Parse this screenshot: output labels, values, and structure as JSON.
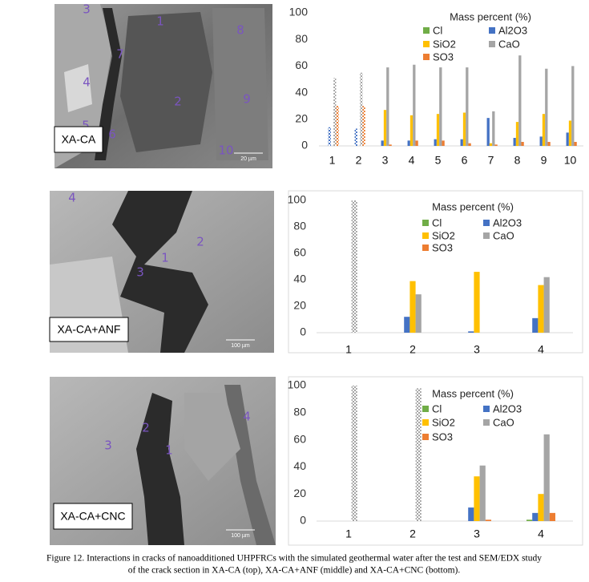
{
  "chart_data": [
    {
      "type": "bar",
      "legend_title": "Mass percent (%)",
      "categories": [
        "1",
        "2",
        "3",
        "4",
        "5",
        "6",
        "7",
        "8",
        "9",
        "10"
      ],
      "checkered": [
        true,
        true,
        false,
        false,
        false,
        false,
        false,
        false,
        false,
        false
      ],
      "series": [
        {
          "name": "Cl",
          "color": "#70ad47",
          "values": [
            0,
            0,
            0,
            0,
            0,
            0,
            0,
            0,
            0,
            0
          ]
        },
        {
          "name": "Al2O3",
          "color": "#4472c4",
          "values": [
            14,
            13,
            4,
            4,
            5,
            5,
            21,
            6,
            7,
            10
          ]
        },
        {
          "name": "SiO2",
          "color": "#ffc000",
          "values": [
            0,
            0,
            27,
            23,
            24,
            25,
            2,
            18,
            24,
            19
          ]
        },
        {
          "name": "CaO",
          "color": "#a5a5a5",
          "values": [
            51,
            55,
            59,
            61,
            59,
            59,
            26,
            68,
            58,
            60
          ]
        },
        {
          "name": "SO3",
          "color": "#ed7d31",
          "values": [
            30,
            30,
            1,
            4,
            4,
            2,
            1,
            3,
            3,
            3
          ]
        }
      ],
      "ylim": [
        0,
        100
      ],
      "yticks": [
        0,
        20,
        40,
        60,
        80,
        100
      ],
      "frame": false
    },
    {
      "type": "bar",
      "legend_title": "Mass percent (%)",
      "categories": [
        "1",
        "2",
        "3",
        "4"
      ],
      "checkered": [
        true,
        false,
        false,
        false
      ],
      "series": [
        {
          "name": "Cl",
          "color": "#70ad47",
          "values": [
            0,
            0,
            0,
            0
          ]
        },
        {
          "name": "Al2O3",
          "color": "#4472c4",
          "values": [
            0,
            12,
            1,
            11
          ]
        },
        {
          "name": "SiO2",
          "color": "#ffc000",
          "values": [
            0,
            39,
            46,
            36
          ]
        },
        {
          "name": "CaO",
          "color": "#a5a5a5",
          "values": [
            100,
            29,
            0,
            42
          ]
        },
        {
          "name": "SO3",
          "color": "#ed7d31",
          "values": [
            0,
            0,
            0,
            0
          ]
        }
      ],
      "ylim": [
        0,
        100
      ],
      "yticks": [
        0,
        20,
        40,
        60,
        80,
        100
      ],
      "frame": true
    },
    {
      "type": "bar",
      "legend_title": "Mass percent (%)",
      "categories": [
        "1",
        "2",
        "3",
        "4"
      ],
      "checkered": [
        true,
        true,
        false,
        false
      ],
      "series": [
        {
          "name": "Cl",
          "color": "#70ad47",
          "values": [
            0,
            0,
            0,
            1
          ]
        },
        {
          "name": "Al2O3",
          "color": "#4472c4",
          "values": [
            0,
            0,
            10,
            6
          ]
        },
        {
          "name": "SiO2",
          "color": "#ffc000",
          "values": [
            0,
            0,
            33,
            20
          ]
        },
        {
          "name": "CaO",
          "color": "#a5a5a5",
          "values": [
            100,
            98,
            41,
            64
          ]
        },
        {
          "name": "SO3",
          "color": "#ed7d31",
          "values": [
            0,
            0,
            1,
            6
          ]
        }
      ],
      "ylim": [
        0,
        100
      ],
      "yticks": [
        0,
        20,
        40,
        60,
        80,
        100
      ],
      "frame": true
    }
  ],
  "panels": [
    {
      "label": "XA-CA",
      "points": [
        "1",
        "2",
        "3",
        "4",
        "5",
        "6",
        "7",
        "8",
        "9",
        "10"
      ],
      "scale": "20 µm"
    },
    {
      "label": "XA-CA+ANF",
      "points": [
        "1",
        "2",
        "3",
        "4"
      ],
      "scale": "100 µm"
    },
    {
      "label": "XA-CA+CNC",
      "points": [
        "1",
        "2",
        "3",
        "4"
      ],
      "scale": "100 µm"
    }
  ],
  "caption": {
    "lines": [
      "Figure 12. Interactions in cracks of nanoadditioned UHPFRCs with the simulated geothermal water after the test and SEM/EDX study",
      "of the crack section in XA-CA (top), XA-CA+ANF (middle) and XA-CA+CNC (bottom)."
    ]
  }
}
